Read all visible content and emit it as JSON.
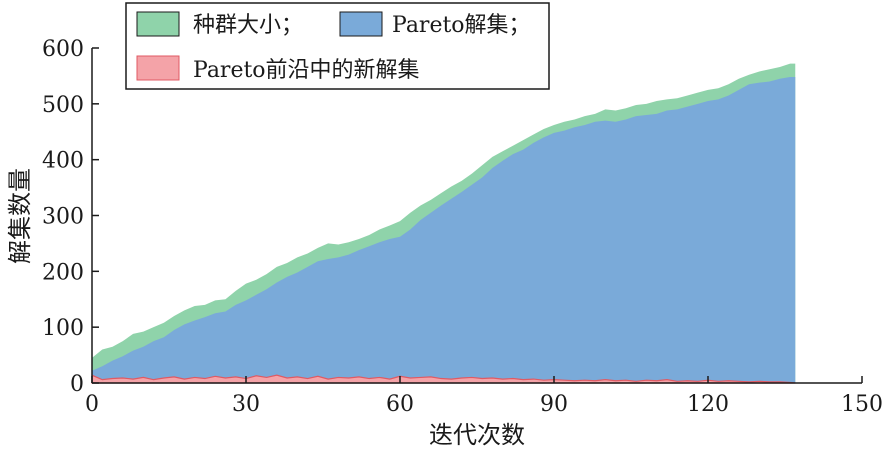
{
  "chart_data": {
    "type": "area",
    "title": "",
    "xlabel": "迭代次数",
    "ylabel": "解集数量",
    "xlim": [
      0,
      150
    ],
    "ylim": [
      0,
      600
    ],
    "xticks": [
      0,
      30,
      60,
      90,
      120,
      150
    ],
    "yticks": [
      0,
      100,
      200,
      300,
      400,
      500,
      600
    ],
    "grid": false,
    "legend_position": "top-left",
    "series": [
      {
        "name": "种群大小；",
        "color": "#8fd3aa",
        "x": [
          0,
          2,
          4,
          6,
          8,
          10,
          12,
          14,
          16,
          18,
          20,
          22,
          24,
          26,
          28,
          30,
          32,
          34,
          36,
          38,
          40,
          42,
          44,
          46,
          48,
          50,
          52,
          54,
          56,
          58,
          60,
          62,
          64,
          66,
          68,
          70,
          72,
          74,
          76,
          78,
          80,
          82,
          84,
          86,
          88,
          90,
          92,
          94,
          96,
          98,
          100,
          102,
          104,
          106,
          108,
          110,
          112,
          114,
          116,
          118,
          120,
          122,
          124,
          126,
          128,
          130,
          132,
          134,
          136,
          137
        ],
        "values": [
          45,
          60,
          65,
          75,
          88,
          92,
          100,
          108,
          120,
          130,
          138,
          140,
          148,
          150,
          165,
          178,
          185,
          195,
          208,
          215,
          225,
          232,
          242,
          250,
          248,
          252,
          258,
          265,
          275,
          282,
          290,
          305,
          318,
          328,
          340,
          352,
          362,
          375,
          390,
          405,
          415,
          425,
          435,
          445,
          455,
          462,
          468,
          472,
          478,
          482,
          490,
          488,
          492,
          498,
          500,
          505,
          508,
          510,
          515,
          520,
          525,
          528,
          535,
          545,
          552,
          558,
          562,
          566,
          572,
          572
        ]
      },
      {
        "name": "Pareto解集；",
        "color": "#7aaad9",
        "x": [
          0,
          2,
          4,
          6,
          8,
          10,
          12,
          14,
          16,
          18,
          20,
          22,
          24,
          26,
          28,
          30,
          32,
          34,
          36,
          38,
          40,
          42,
          44,
          46,
          48,
          50,
          52,
          54,
          56,
          58,
          60,
          62,
          64,
          66,
          68,
          70,
          72,
          74,
          76,
          78,
          80,
          82,
          84,
          86,
          88,
          90,
          92,
          94,
          96,
          98,
          100,
          102,
          104,
          106,
          108,
          110,
          112,
          114,
          116,
          118,
          120,
          122,
          124,
          126,
          128,
          130,
          132,
          134,
          136,
          137
        ],
        "values": [
          22,
          30,
          40,
          48,
          58,
          65,
          75,
          82,
          95,
          105,
          112,
          118,
          125,
          128,
          140,
          148,
          158,
          168,
          180,
          190,
          198,
          208,
          218,
          222,
          225,
          230,
          238,
          245,
          252,
          258,
          262,
          275,
          292,
          305,
          318,
          330,
          342,
          355,
          368,
          385,
          398,
          410,
          418,
          430,
          440,
          448,
          452,
          458,
          462,
          468,
          470,
          468,
          472,
          478,
          480,
          482,
          488,
          490,
          495,
          500,
          505,
          508,
          515,
          525,
          535,
          538,
          540,
          545,
          548,
          548
        ]
      },
      {
        "name": "Pareto前沿中的新解集",
        "color": "#f4a3a8",
        "stroke": "#e05a63",
        "x": [
          0,
          2,
          4,
          6,
          8,
          10,
          12,
          14,
          16,
          18,
          20,
          22,
          24,
          26,
          28,
          30,
          32,
          34,
          36,
          38,
          40,
          42,
          44,
          46,
          48,
          50,
          52,
          54,
          56,
          58,
          60,
          62,
          64,
          66,
          68,
          70,
          72,
          74,
          76,
          78,
          80,
          82,
          84,
          86,
          88,
          90,
          92,
          94,
          96,
          98,
          100,
          102,
          104,
          106,
          108,
          110,
          112,
          114,
          116,
          118,
          120,
          122,
          124,
          126,
          128,
          130,
          132,
          134,
          136,
          137
        ],
        "values": [
          14,
          6,
          8,
          9,
          7,
          10,
          6,
          9,
          11,
          7,
          10,
          8,
          12,
          9,
          11,
          8,
          13,
          10,
          14,
          9,
          11,
          8,
          12,
          7,
          10,
          9,
          11,
          8,
          10,
          7,
          12,
          9,
          10,
          11,
          8,
          7,
          9,
          10,
          8,
          9,
          7,
          8,
          6,
          7,
          5,
          6,
          5,
          4,
          5,
          4,
          6,
          4,
          5,
          3,
          5,
          4,
          6,
          3,
          4,
          3,
          5,
          3,
          4,
          3,
          2,
          3,
          2,
          2,
          1,
          0
        ]
      }
    ]
  }
}
